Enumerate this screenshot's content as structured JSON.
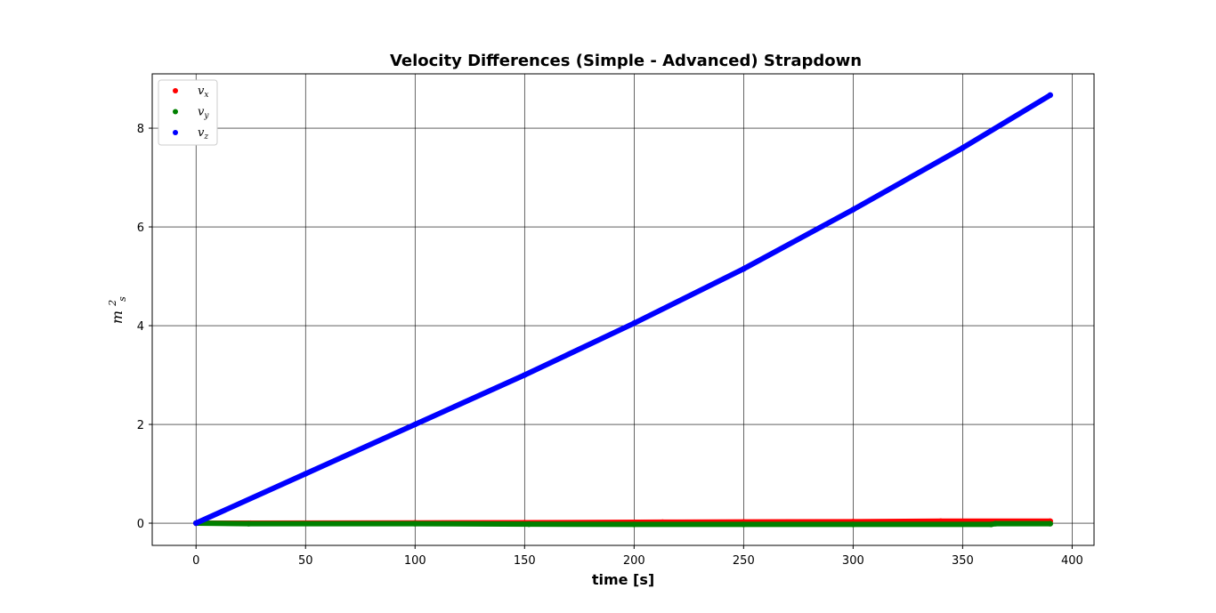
{
  "chart_data": {
    "type": "scatter",
    "title": "Velocity Differences (Simple - Advanced) Strapdown",
    "xlabel": "time [s]",
    "ylabel": {
      "base": "m",
      "sup": "2",
      "sub": "s"
    },
    "xlim": [
      -20,
      410
    ],
    "ylim": [
      -0.45,
      9.1
    ],
    "xticks": [
      0,
      50,
      100,
      150,
      200,
      250,
      300,
      350,
      400
    ],
    "yticks": [
      0,
      2,
      4,
      6,
      8
    ],
    "grid": true,
    "legend_position": "top-left",
    "series": [
      {
        "name": {
          "base": "v",
          "sub": "x"
        },
        "color": "#ff0000",
        "points": [
          [
            0,
            0
          ],
          [
            25,
            0.0
          ],
          [
            100,
            0.005
          ],
          [
            150,
            0.01
          ],
          [
            213,
            0.02
          ],
          [
            250,
            0.025
          ],
          [
            300,
            0.03
          ],
          [
            340,
            0.04
          ],
          [
            390,
            0.04
          ]
        ]
      },
      {
        "name": {
          "base": "v",
          "sub": "y"
        },
        "color": "#008000",
        "points": [
          [
            0,
            0
          ],
          [
            24,
            -0.01
          ],
          [
            100,
            -0.01
          ],
          [
            152,
            -0.02
          ],
          [
            200,
            -0.025
          ],
          [
            250,
            -0.025
          ],
          [
            300,
            -0.025
          ],
          [
            363,
            -0.025
          ],
          [
            365,
            -0.01
          ],
          [
            390,
            -0.01
          ]
        ]
      },
      {
        "name": {
          "base": "v",
          "sub": "z"
        },
        "color": "#0000ff",
        "points": [
          [
            0,
            0
          ],
          [
            50,
            1.0
          ],
          [
            100,
            2.0
          ],
          [
            150,
            3.0
          ],
          [
            200,
            4.05
          ],
          [
            250,
            5.15
          ],
          [
            300,
            6.35
          ],
          [
            350,
            7.6
          ],
          [
            390,
            8.67
          ]
        ]
      }
    ]
  }
}
